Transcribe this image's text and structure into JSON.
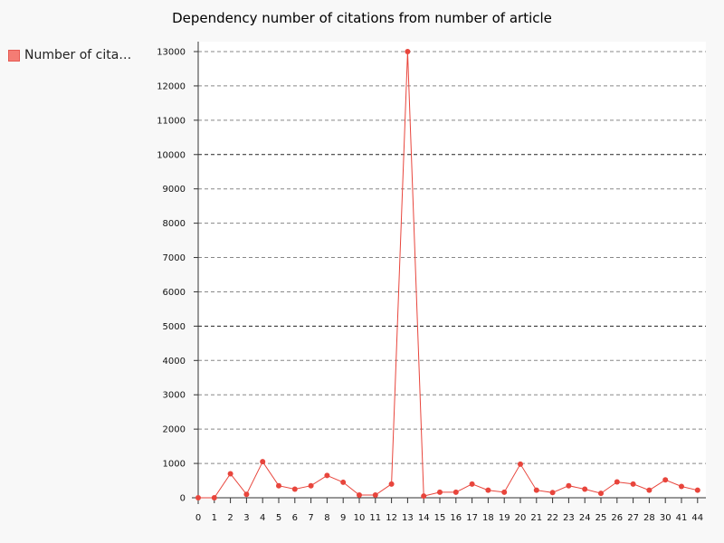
{
  "chart_data": {
    "type": "line",
    "title": "Dependency number of citations from number of article",
    "categories": [
      "0",
      "1",
      "2",
      "3",
      "4",
      "5",
      "6",
      "7",
      "8",
      "9",
      "10",
      "11",
      "12",
      "13",
      "14",
      "15",
      "16",
      "17",
      "18",
      "19",
      "20",
      "21",
      "22",
      "23",
      "24",
      "25",
      "26",
      "27",
      "28",
      "30",
      "41",
      "44"
    ],
    "series": [
      {
        "name": "Number of cita…",
        "values": [
          0,
          0,
          700,
          100,
          1050,
          350,
          250,
          350,
          650,
          450,
          80,
          80,
          400,
          13000,
          50,
          160,
          160,
          400,
          220,
          160,
          980,
          220,
          150,
          350,
          250,
          130,
          460,
          400,
          220,
          520,
          330,
          220
        ]
      }
    ],
    "yticks": [
      0,
      1000,
      2000,
      3000,
      4000,
      5000,
      6000,
      7000,
      8000,
      9000,
      10000,
      11000,
      12000,
      13000
    ],
    "ylim": [
      0,
      13000
    ],
    "grid": true,
    "legend_position": "left",
    "color": "#e8453c"
  }
}
